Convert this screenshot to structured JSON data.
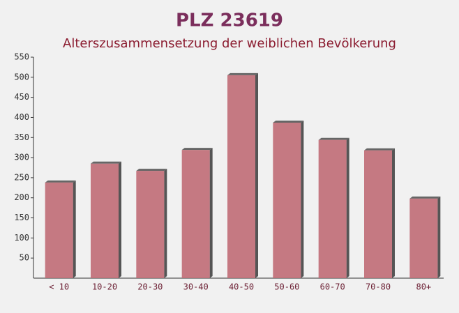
{
  "chart_data": {
    "type": "bar",
    "title": "PLZ 23619",
    "subtitle": "Alterszusammensetzung der weiblichen Bevölkerung",
    "categories": [
      "< 10",
      "10-20",
      "20-30",
      "30-40",
      "40-50",
      "50-60",
      "60-70",
      "70-80",
      "80+"
    ],
    "values": [
      238,
      285,
      267,
      319,
      505,
      387,
      344,
      318,
      198
    ],
    "color": "#c06b76",
    "ylim": [
      0,
      550
    ],
    "yticks": [
      50,
      100,
      150,
      200,
      250,
      300,
      350,
      400,
      450,
      500,
      550
    ],
    "grid": false
  }
}
